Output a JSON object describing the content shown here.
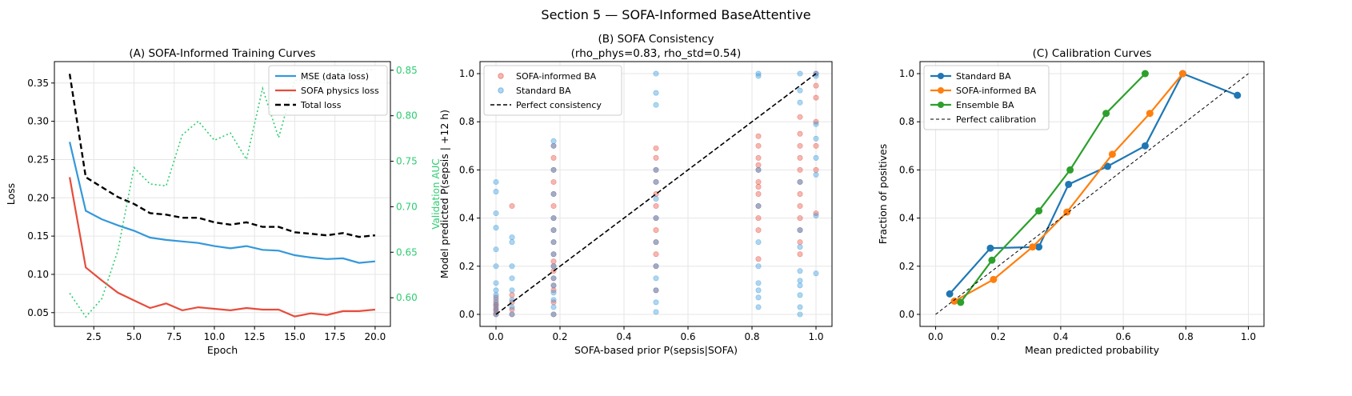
{
  "figure_title": "Section 5 — SOFA-Informed BaseAttentive",
  "colors": {
    "mse": "#3498db",
    "sofa_loss": "#e74c3c",
    "total": "#000000",
    "auc": "#2ecc71",
    "scatter_sofa": "#e74c3c",
    "scatter_std": "#3498db",
    "cal_standard": "#1f77b4",
    "cal_sofa": "#ff7f0e",
    "cal_ensemble": "#2ca02c",
    "grid": "#e6e6e6"
  },
  "chart_data": [
    {
      "id": "A",
      "type": "line",
      "title": "(A) SOFA-Informed Training Curves",
      "xlabel": "Epoch",
      "ylabel": "Loss",
      "y2label": "Validation AUC",
      "xlim": [
        0.05,
        20.95
      ],
      "ylim": [
        0.032,
        0.378
      ],
      "y2lim": [
        0.5685,
        0.8595
      ],
      "xticks": [
        2.5,
        5.0,
        7.5,
        10.0,
        12.5,
        15.0,
        17.5,
        20.0
      ],
      "xtick_labels": [
        "2.5",
        "5.0",
        "7.5",
        "10.0",
        "12.5",
        "15.0",
        "17.5",
        "20.0"
      ],
      "yticks": [
        0.05,
        0.1,
        0.15,
        0.2,
        0.25,
        0.3,
        0.35
      ],
      "ytick_labels": [
        "0.05",
        "0.10",
        "0.15",
        "0.20",
        "0.25",
        "0.30",
        "0.35"
      ],
      "y2ticks": [
        0.6,
        0.65,
        0.7,
        0.75,
        0.8,
        0.85
      ],
      "y2tick_labels": [
        "0.60",
        "0.65",
        "0.70",
        "0.75",
        "0.80",
        "0.85"
      ],
      "grid": true,
      "legend_position": "top-right",
      "x": [
        1,
        2,
        3,
        4,
        5,
        6,
        7,
        8,
        9,
        10,
        11,
        12,
        13,
        14,
        15,
        16,
        17,
        18,
        19,
        20
      ],
      "series": [
        {
          "name": "MSE (data loss)",
          "axis": "left",
          "style": "solid",
          "color_key": "mse",
          "values": [
            0.273,
            0.183,
            0.172,
            0.164,
            0.157,
            0.148,
            0.145,
            0.143,
            0.141,
            0.137,
            0.134,
            0.137,
            0.132,
            0.131,
            0.125,
            0.122,
            0.12,
            0.121,
            0.115,
            0.117
          ]
        },
        {
          "name": "SOFA physics loss",
          "axis": "left",
          "style": "solid",
          "color_key": "sofa_loss",
          "values": [
            0.227,
            0.109,
            0.092,
            0.076,
            0.066,
            0.056,
            0.062,
            0.053,
            0.057,
            0.055,
            0.053,
            0.056,
            0.054,
            0.054,
            0.045,
            0.049,
            0.047,
            0.052,
            0.052,
            0.054
          ]
        },
        {
          "name": "Total loss",
          "axis": "left",
          "style": "dashed",
          "color_key": "total",
          "values": [
            0.362,
            0.227,
            0.214,
            0.201,
            0.192,
            0.18,
            0.178,
            0.174,
            0.174,
            0.168,
            0.165,
            0.168,
            0.162,
            0.162,
            0.155,
            0.153,
            0.151,
            0.154,
            0.149,
            0.151
          ]
        },
        {
          "name": "",
          "axis": "right",
          "style": "dotted",
          "color_key": "auc",
          "values": [
            0.605,
            0.579,
            0.599,
            0.652,
            0.743,
            0.725,
            0.723,
            0.779,
            0.794,
            0.773,
            0.781,
            0.752,
            0.83,
            0.776,
            0.839,
            0.839,
            0.836,
            0.85,
            0.849,
            0.851
          ]
        }
      ]
    },
    {
      "id": "B",
      "type": "scatter",
      "title": "(B) SOFA Consistency",
      "subtitle": "(rho_phys=0.83, rho_std=0.54)",
      "xlabel": "SOFA-based prior  P(sepsis|SOFA)",
      "ylabel": "Model predicted P(sepsis | +12 h)",
      "xlim": [
        -0.05,
        1.05
      ],
      "ylim": [
        -0.05,
        1.05
      ],
      "xticks": [
        0.0,
        0.2,
        0.4,
        0.6,
        0.8,
        1.0
      ],
      "xtick_labels": [
        "0.0",
        "0.2",
        "0.4",
        "0.6",
        "0.8",
        "1.0"
      ],
      "yticks": [
        0.0,
        0.2,
        0.4,
        0.6,
        0.8,
        1.0
      ],
      "ytick_labels": [
        "0.0",
        "0.2",
        "0.4",
        "0.6",
        "0.8",
        "1.0"
      ],
      "grid": true,
      "legend_position": "top-left",
      "series": [
        {
          "name": "SOFA-informed BA",
          "color_key": "scatter_sofa",
          "points": [
            [
              0.0,
              0.0
            ],
            [
              0.0,
              0.01
            ],
            [
              0.0,
              0.02
            ],
            [
              0.0,
              0.03
            ],
            [
              0.0,
              0.05
            ],
            [
              0.0,
              0.07
            ],
            [
              0.0,
              0.04
            ],
            [
              0.05,
              0.0
            ],
            [
              0.05,
              0.02
            ],
            [
              0.05,
              0.05
            ],
            [
              0.05,
              0.08
            ],
            [
              0.05,
              0.45
            ],
            [
              0.18,
              0.0
            ],
            [
              0.18,
              0.05
            ],
            [
              0.18,
              0.1
            ],
            [
              0.18,
              0.15
            ],
            [
              0.18,
              0.2
            ],
            [
              0.18,
              0.25
            ],
            [
              0.18,
              0.3
            ],
            [
              0.18,
              0.35
            ],
            [
              0.18,
              0.4
            ],
            [
              0.18,
              0.45
            ],
            [
              0.18,
              0.5
            ],
            [
              0.18,
              0.55
            ],
            [
              0.18,
              0.6
            ],
            [
              0.18,
              0.65
            ],
            [
              0.18,
              0.7
            ],
            [
              0.18,
              0.12
            ],
            [
              0.18,
              0.18
            ],
            [
              0.18,
              0.22
            ],
            [
              0.5,
              0.1
            ],
            [
              0.5,
              0.2
            ],
            [
              0.5,
              0.3
            ],
            [
              0.5,
              0.35
            ],
            [
              0.5,
              0.4
            ],
            [
              0.5,
              0.45
            ],
            [
              0.5,
              0.5
            ],
            [
              0.5,
              0.55
            ],
            [
              0.5,
              0.6
            ],
            [
              0.5,
              0.65
            ],
            [
              0.5,
              0.69
            ],
            [
              0.5,
              0.25
            ],
            [
              0.82,
              0.23
            ],
            [
              0.82,
              0.35
            ],
            [
              0.82,
              0.4
            ],
            [
              0.82,
              0.45
            ],
            [
              0.82,
              0.5
            ],
            [
              0.82,
              0.53
            ],
            [
              0.82,
              0.55
            ],
            [
              0.82,
              0.6
            ],
            [
              0.82,
              0.65
            ],
            [
              0.82,
              0.7
            ],
            [
              0.82,
              0.74
            ],
            [
              0.82,
              0.62
            ],
            [
              0.95,
              0.25
            ],
            [
              0.95,
              0.3
            ],
            [
              0.95,
              0.35
            ],
            [
              0.95,
              0.4
            ],
            [
              0.95,
              0.45
            ],
            [
              0.95,
              0.5
            ],
            [
              0.95,
              0.55
            ],
            [
              0.95,
              0.6
            ],
            [
              0.95,
              0.65
            ],
            [
              0.95,
              0.7
            ],
            [
              0.95,
              0.75
            ],
            [
              0.95,
              0.82
            ],
            [
              1.0,
              0.42
            ],
            [
              1.0,
              0.6
            ],
            [
              1.0,
              0.7
            ],
            [
              1.0,
              0.8
            ],
            [
              1.0,
              0.9
            ],
            [
              1.0,
              0.95
            ],
            [
              1.0,
              1.0
            ]
          ]
        },
        {
          "name": "Standard BA",
          "color_key": "scatter_std",
          "points": [
            [
              0.0,
              0.0
            ],
            [
              0.0,
              0.02
            ],
            [
              0.0,
              0.04
            ],
            [
              0.0,
              0.06
            ],
            [
              0.0,
              0.08
            ],
            [
              0.0,
              0.1
            ],
            [
              0.0,
              0.13
            ],
            [
              0.0,
              0.2
            ],
            [
              0.0,
              0.27
            ],
            [
              0.0,
              0.36
            ],
            [
              0.0,
              0.42
            ],
            [
              0.0,
              0.51
            ],
            [
              0.0,
              0.55
            ],
            [
              0.05,
              0.0
            ],
            [
              0.05,
              0.03
            ],
            [
              0.05,
              0.06
            ],
            [
              0.05,
              0.1
            ],
            [
              0.05,
              0.15
            ],
            [
              0.05,
              0.2
            ],
            [
              0.05,
              0.3
            ],
            [
              0.05,
              0.32
            ],
            [
              0.18,
              0.0
            ],
            [
              0.18,
              0.03
            ],
            [
              0.18,
              0.06
            ],
            [
              0.18,
              0.09
            ],
            [
              0.18,
              0.12
            ],
            [
              0.18,
              0.15
            ],
            [
              0.18,
              0.2
            ],
            [
              0.18,
              0.25
            ],
            [
              0.18,
              0.3
            ],
            [
              0.18,
              0.35
            ],
            [
              0.18,
              0.4
            ],
            [
              0.18,
              0.5
            ],
            [
              0.18,
              0.6
            ],
            [
              0.18,
              0.7
            ],
            [
              0.18,
              0.72
            ],
            [
              0.5,
              0.01
            ],
            [
              0.5,
              0.05
            ],
            [
              0.5,
              0.1
            ],
            [
              0.5,
              0.15
            ],
            [
              0.5,
              0.2
            ],
            [
              0.5,
              0.3
            ],
            [
              0.5,
              0.4
            ],
            [
              0.5,
              0.48
            ],
            [
              0.5,
              0.55
            ],
            [
              0.5,
              0.6
            ],
            [
              0.5,
              0.87
            ],
            [
              0.5,
              0.92
            ],
            [
              0.5,
              1.0
            ],
            [
              0.82,
              0.03
            ],
            [
              0.82,
              0.07
            ],
            [
              0.82,
              0.1
            ],
            [
              0.82,
              0.13
            ],
            [
              0.82,
              0.2
            ],
            [
              0.82,
              0.3
            ],
            [
              0.82,
              0.45
            ],
            [
              0.82,
              0.6
            ],
            [
              0.82,
              0.99
            ],
            [
              0.82,
              1.0
            ],
            [
              0.95,
              0.0
            ],
            [
              0.95,
              0.03
            ],
            [
              0.95,
              0.08
            ],
            [
              0.95,
              0.12
            ],
            [
              0.95,
              0.14
            ],
            [
              0.95,
              0.18
            ],
            [
              0.95,
              0.28
            ],
            [
              0.95,
              0.35
            ],
            [
              0.95,
              0.55
            ],
            [
              0.95,
              0.88
            ],
            [
              0.95,
              0.93
            ],
            [
              0.95,
              1.0
            ],
            [
              1.0,
              0.17
            ],
            [
              1.0,
              0.41
            ],
            [
              1.0,
              0.58
            ],
            [
              1.0,
              0.65
            ],
            [
              1.0,
              0.73
            ],
            [
              1.0,
              0.79
            ],
            [
              1.0,
              0.99
            ],
            [
              1.0,
              1.0
            ]
          ]
        },
        {
          "name": "Perfect consistency",
          "style": "dashed",
          "color_key": "total",
          "points": [
            [
              0.0,
              0.0
            ],
            [
              1.0,
              1.0
            ]
          ]
        }
      ]
    },
    {
      "id": "C",
      "type": "line",
      "title": "(C) Calibration Curves",
      "xlabel": "Mean predicted probability",
      "ylabel": "Fraction of positives",
      "xlim": [
        -0.05,
        1.05
      ],
      "ylim": [
        -0.05,
        1.05
      ],
      "xticks": [
        0.0,
        0.2,
        0.4,
        0.6,
        0.8,
        1.0
      ],
      "xtick_labels": [
        "0.0",
        "0.2",
        "0.4",
        "0.6",
        "0.8",
        "1.0"
      ],
      "yticks": [
        0.0,
        0.2,
        0.4,
        0.6,
        0.8,
        1.0
      ],
      "ytick_labels": [
        "0.0",
        "0.2",
        "0.4",
        "0.6",
        "0.8",
        "1.0"
      ],
      "grid": true,
      "legend_position": "top-left",
      "series": [
        {
          "name": "Standard BA",
          "color_key": "cal_standard",
          "markers": true,
          "points": [
            [
              0.045,
              0.085
            ],
            [
              0.175,
              0.275
            ],
            [
              0.33,
              0.28
            ],
            [
              0.425,
              0.54
            ],
            [
              0.55,
              0.615
            ],
            [
              0.67,
              0.7
            ],
            [
              0.79,
              1.0
            ],
            [
              0.965,
              0.91
            ]
          ]
        },
        {
          "name": "SOFA-informed BA",
          "color_key": "cal_sofa",
          "markers": true,
          "points": [
            [
              0.06,
              0.055
            ],
            [
              0.185,
              0.145
            ],
            [
              0.31,
              0.28
            ],
            [
              0.42,
              0.425
            ],
            [
              0.565,
              0.665
            ],
            [
              0.685,
              0.835
            ],
            [
              0.79,
              1.0
            ]
          ]
        },
        {
          "name": "Ensemble BA",
          "color_key": "cal_ensemble",
          "markers": true,
          "points": [
            [
              0.08,
              0.05
            ],
            [
              0.18,
              0.225
            ],
            [
              0.33,
              0.43
            ],
            [
              0.43,
              0.6
            ],
            [
              0.545,
              0.835
            ],
            [
              0.67,
              1.0
            ]
          ]
        },
        {
          "name": "Perfect calibration",
          "style": "dashed-thin",
          "color_key": "total",
          "markers": false,
          "points": [
            [
              0.0,
              0.0
            ],
            [
              1.0,
              1.0
            ]
          ]
        }
      ]
    }
  ]
}
